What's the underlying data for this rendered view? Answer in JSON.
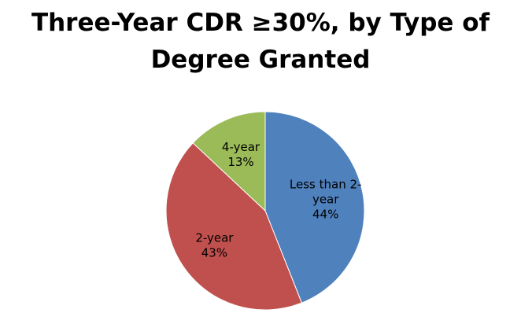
{
  "chart_data": {
    "type": "pie",
    "title": "Three-Year CDR ≥30%, by Type of Degree Granted",
    "slices": [
      {
        "label": "Less than 2-year",
        "label_lines": [
          "Less than 2-",
          "year"
        ],
        "value": 44,
        "value_label": "44%",
        "color": "#4F81BD"
      },
      {
        "label": "2-year",
        "label_lines": [
          "2-year"
        ],
        "value": 43,
        "value_label": "43%",
        "color": "#C0504D"
      },
      {
        "label": "4-year",
        "label_lines": [
          "4-year"
        ],
        "value": 13,
        "value_label": "13%",
        "color": "#9BBB59"
      }
    ],
    "start_angle": "12 o'clock",
    "direction": "clockwise",
    "legend": "none"
  }
}
